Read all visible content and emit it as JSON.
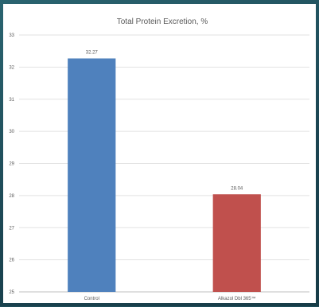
{
  "chart_data": {
    "type": "bar",
    "title": "Total Protein Excretion, %",
    "xlabel": "",
    "ylabel": "",
    "categories": [
      "Control",
      "Alkazol Dbl 365™"
    ],
    "values": [
      32.27,
      28.04
    ],
    "value_labels": [
      "32.27",
      "28.04"
    ],
    "colors": [
      "#4f81bd",
      "#c0504d"
    ],
    "ylim": [
      25,
      33
    ],
    "yticks": [
      "25",
      "26",
      "27",
      "28",
      "29",
      "30",
      "31",
      "32",
      "33"
    ],
    "grid": true,
    "legend": "none"
  },
  "colors": {
    "frame": "#1f4e5a",
    "grid": "#e2e2e2",
    "axis_text": "#595959"
  }
}
